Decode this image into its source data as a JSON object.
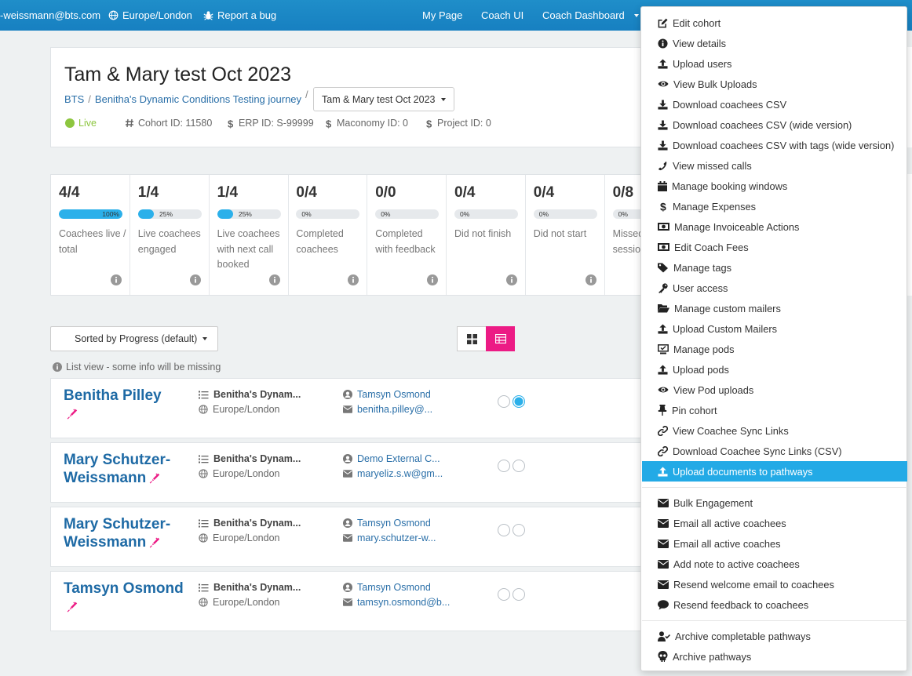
{
  "topbar": {
    "email": "-weissmann@bts.com",
    "timezone": "Europe/London",
    "report_bug": "Report a bug",
    "nav": {
      "my_page": "My Page",
      "coach_ui": "Coach UI",
      "coach_dashboard": "Coach Dashboard"
    }
  },
  "header": {
    "title": "Tam & Mary test Oct 2023",
    "breadcrumb": {
      "root": "BTS",
      "journey": "Benitha's Dynamic Conditions Testing journey"
    },
    "cohort_select": "Tam & Mary test Oct 2023",
    "status": "Live",
    "cohort_id": "Cohort ID: 11580",
    "erp_id": "ERP ID: S-99999",
    "maconomy_id": "Maconomy ID: 0",
    "project_id": "Project ID: 0"
  },
  "stats": [
    {
      "value": "4/4",
      "pct": 100,
      "pct_label": "100%",
      "label": "Coachees live / total"
    },
    {
      "value": "1/4",
      "pct": 25,
      "pct_label": "25%",
      "label": "Live coachees engaged"
    },
    {
      "value": "1/4",
      "pct": 25,
      "pct_label": "25%",
      "label": "Live coachees with next call booked"
    },
    {
      "value": "0/4",
      "pct": 0,
      "pct_label": "0%",
      "label": "Completed coachees"
    },
    {
      "value": "0/0",
      "pct": 0,
      "pct_label": "0%",
      "label": "Completed with feedback"
    },
    {
      "value": "0/4",
      "pct": 0,
      "pct_label": "0%",
      "label": "Did not finish"
    },
    {
      "value": "0/4",
      "pct": 0,
      "pct_label": "0%",
      "label": "Did not start"
    },
    {
      "value": "0/8",
      "pct": 0,
      "pct_label": "0%",
      "label": "Missed sessions"
    }
  ],
  "controls": {
    "sort_label": "Sorted by Progress (default)",
    "list_note": "List view - some info will be missing"
  },
  "coachees": [
    {
      "name_1": "Benitha Pilley",
      "name_2": "",
      "journey": "Benitha's Dynam...",
      "timezone": "Europe/London",
      "coach": "Tamsyn Osmond",
      "email": "benitha.pilley@..."
    },
    {
      "name_1": "Mary Schutzer-",
      "name_2": "Weissmann",
      "journey": "Benitha's Dynam...",
      "timezone": "Europe/London",
      "coach": "Demo External C...",
      "email": "maryeliz.s.w@gm..."
    },
    {
      "name_1": "Mary Schutzer-",
      "name_2": "Weissmann",
      "journey": "Benitha's Dynam...",
      "timezone": "Europe/London",
      "coach": "Tamsyn Osmond",
      "email": "mary.schutzer-w..."
    },
    {
      "name_1": "Tamsyn Osmond",
      "name_2": "",
      "journey": "Benitha's Dynam...",
      "timezone": "Europe/London",
      "coach": "Tamsyn Osmond",
      "email": "tamsyn.osmond@b..."
    }
  ],
  "menu": {
    "group1": [
      {
        "label": "Edit cohort",
        "icon": "edit-icon"
      },
      {
        "label": "View details",
        "icon": "info-circle-icon"
      },
      {
        "label": "Upload users",
        "icon": "upload-icon"
      },
      {
        "label": "View Bulk Uploads",
        "icon": "eye-icon"
      },
      {
        "label": "Download coachees CSV",
        "icon": "download-icon"
      },
      {
        "label": "Download coachees CSV (wide version)",
        "icon": "download-icon"
      },
      {
        "label": "Download coachees CSV with tags (wide version)",
        "icon": "download-icon"
      },
      {
        "label": "View missed calls",
        "icon": "phone-icon"
      },
      {
        "label": "Manage booking windows",
        "icon": "calendar-icon"
      },
      {
        "label": "Manage Expenses",
        "icon": "dollar-icon"
      },
      {
        "label": "Manage Invoiceable Actions",
        "icon": "money-bill-icon"
      },
      {
        "label": "Edit Coach Fees",
        "icon": "money-bill-icon"
      },
      {
        "label": "Manage tags",
        "icon": "tags-icon"
      },
      {
        "label": "User access",
        "icon": "key-icon"
      },
      {
        "label": "Manage custom mailers",
        "icon": "folder-open-icon"
      },
      {
        "label": "Upload Custom Mailers",
        "icon": "upload-icon"
      },
      {
        "label": "Manage pods",
        "icon": "pods-icon"
      },
      {
        "label": "Upload pods",
        "icon": "upload-icon"
      },
      {
        "label": "View Pod uploads",
        "icon": "eye-icon"
      },
      {
        "label": "Pin cohort",
        "icon": "pin-icon"
      },
      {
        "label": "View Coachee Sync Links",
        "icon": "link-icon"
      },
      {
        "label": "Download Coachee Sync Links (CSV)",
        "icon": "link-icon"
      },
      {
        "label": "Upload documents to pathways",
        "icon": "upload-icon"
      }
    ],
    "group2": [
      {
        "label": "Bulk Engagement",
        "icon": "envelope-icon"
      },
      {
        "label": "Email all active coachees",
        "icon": "envelope-icon"
      },
      {
        "label": "Email all active coaches",
        "icon": "envelope-icon"
      },
      {
        "label": "Add note to active coachees",
        "icon": "envelope-icon"
      },
      {
        "label": "Resend welcome email to coachees",
        "icon": "envelope-icon"
      },
      {
        "label": "Resend feedback to coachees",
        "icon": "comment-icon"
      }
    ],
    "group3": [
      {
        "label": "Archive completable pathways",
        "icon": "user-check-icon"
      },
      {
        "label": "Archive pathways",
        "icon": "skull-icon"
      }
    ],
    "active_item": "Upload documents to pathways"
  },
  "colors": {
    "topbar": "#1b87c6",
    "accent": "#2bb0ea",
    "pink": "#ec1b85",
    "link": "#2a6fa8",
    "live": "#8dc63f"
  }
}
